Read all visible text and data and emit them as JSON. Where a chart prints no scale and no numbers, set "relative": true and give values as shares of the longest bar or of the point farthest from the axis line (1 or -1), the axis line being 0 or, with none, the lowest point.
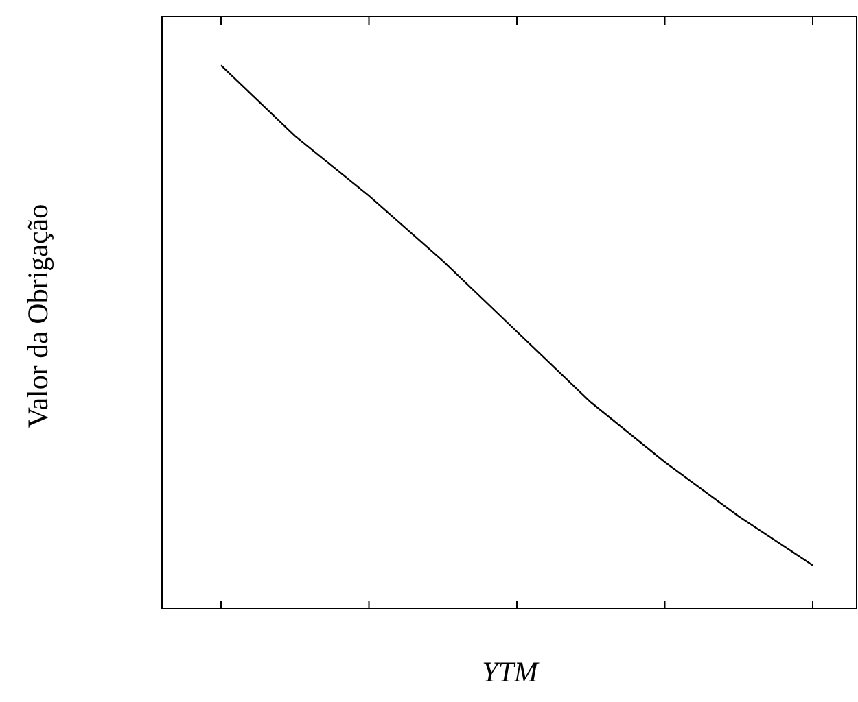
{
  "chart_data": {
    "type": "line",
    "relative": true,
    "xlabel": "YTM",
    "ylabel": "Valor da Obrigação",
    "categories": [
      null,
      null,
      null,
      null,
      null,
      null,
      null,
      null,
      null
    ],
    "series": [
      {
        "color": "#000000",
        "values": [
          1,
          0.87,
          0.76,
          0.64,
          0.51,
          0.38,
          0.27,
          0.17,
          0.08
        ]
      }
    ],
    "grid": false,
    "legend": false,
    "marker": "none",
    "line_style": "solid"
  }
}
